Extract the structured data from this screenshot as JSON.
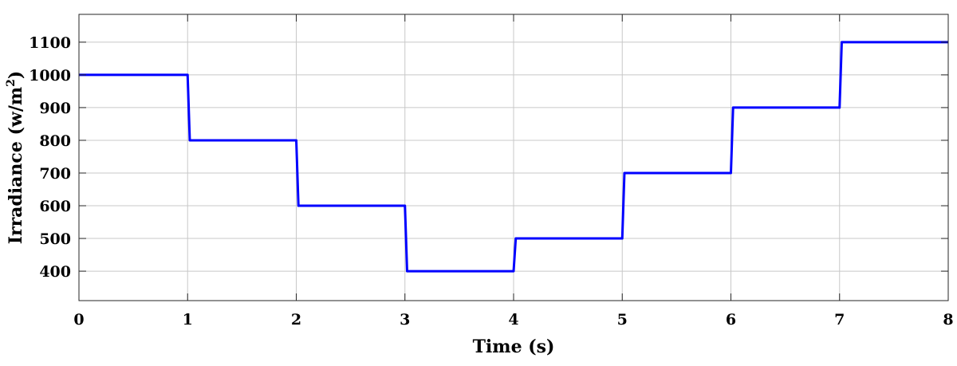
{
  "chart_data": {
    "type": "line",
    "title": "",
    "xlabel": "Time (s)",
    "ylabel_main": "Irradiance (w/m",
    "ylabel_sup": "2",
    "ylabel_close": ")",
    "xlim": [
      0,
      8
    ],
    "ylim": [
      310,
      1185
    ],
    "xticks": [
      0,
      1,
      2,
      3,
      4,
      5,
      6,
      7,
      8
    ],
    "yticks": [
      400,
      500,
      600,
      700,
      800,
      900,
      1000,
      1100
    ],
    "grid": true,
    "series": [
      {
        "color": "#0000ff",
        "x": [
          0,
          1.0,
          1.02,
          2.0,
          2.02,
          3.0,
          3.02,
          4.0,
          4.02,
          5.0,
          5.02,
          6.0,
          6.02,
          7.0,
          7.02,
          8
        ],
        "y": [
          1000,
          1000,
          800,
          800,
          600,
          600,
          400,
          400,
          500,
          500,
          700,
          700,
          900,
          900,
          1100,
          1100
        ]
      }
    ]
  }
}
